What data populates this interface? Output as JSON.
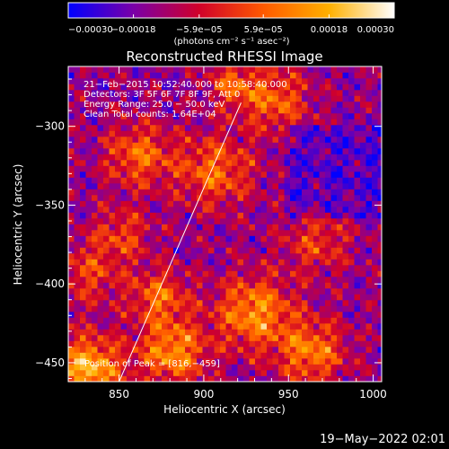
{
  "chart_data": {
    "type": "heatmap",
    "title": "Reconstructed RHESSI Image",
    "xlabel": "Heliocentric X (arcsec)",
    "ylabel": "Heliocentric Y (arcsec)",
    "xlim": [
      820,
      1005
    ],
    "ylim": [
      -462,
      -262
    ],
    "x_ticks": [
      850,
      900,
      950,
      1000
    ],
    "x_tick_labels": [
      "850",
      "900",
      "950",
      "1000"
    ],
    "y_ticks": [
      -450,
      -400,
      -350,
      -300
    ],
    "y_tick_labels": [
      "−450",
      "−400",
      "−350",
      "−300"
    ],
    "colorbar": {
      "range": [
        -0.0003,
        0.0003
      ],
      "ticks": [
        -0.0003,
        -0.00018,
        -5.9e-05,
        5.9e-05,
        0.00018,
        0.0003
      ],
      "tick_labels": [
        "−0.00030",
        "−0.00018",
        "−5.9e−05",
        "5.9e−05",
        "0.00018",
        "0.00030"
      ],
      "unit_label": "(photons cm⁻² s⁻¹ asec⁻²)",
      "colors": [
        "#0000ff",
        "#7a00a8",
        "#d0002a",
        "#ff5a00",
        "#ffb000",
        "#ffffff"
      ]
    },
    "annotations": [
      "21−Feb−2015 10:52:40.000 to 10:58:40.000",
      "Detectors: 3F 5F 6F 7F 8F 9F, Att 0",
      "Energy Range: 25.0 − 50.0 keV",
      "Clean     Total counts: 1.64E+04"
    ],
    "peak_label": "Position of Peak = [816,−459]",
    "limb_line": {
      "x": [
        850,
        922
      ],
      "y": [
        -462,
        -285
      ]
    },
    "timestamp": "19−May−2022 02:01"
  }
}
